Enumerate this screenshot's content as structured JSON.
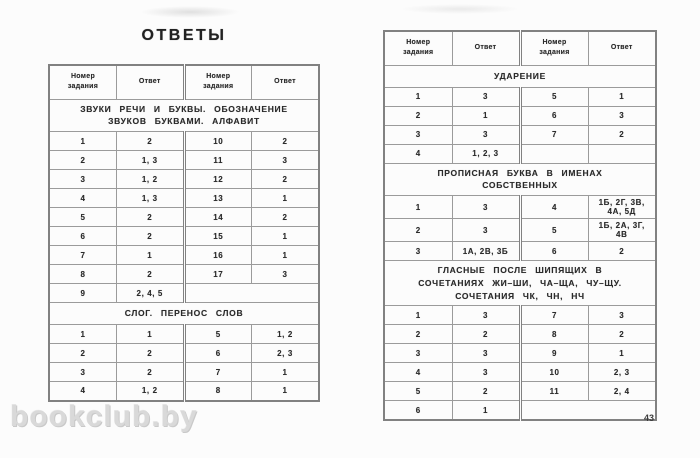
{
  "page": {
    "title": "ОТВЕТЫ",
    "watermark": "bookclub.by",
    "page_number": "43"
  },
  "colors": {
    "background": "#fcfcfc",
    "text": "#2b2b2b",
    "border": "#9b9b9b",
    "border_dark": "#818181",
    "watermark": "#d9d9d9"
  },
  "left_table": {
    "headers": [
      "Номер задания",
      "Ответ",
      "Номер задания",
      "Ответ"
    ],
    "sections": [
      {
        "title": "ЗВУКИ РЕЧИ И БУКВЫ. ОБОЗНАЧЕНИЕ ЗВУКОВ БУКВАМИ. АЛФАВИТ",
        "rows": [
          [
            "1",
            "2",
            "10",
            "2"
          ],
          [
            "2",
            "1, 3",
            "11",
            "3"
          ],
          [
            "3",
            "1, 2",
            "12",
            "2"
          ],
          [
            "4",
            "1, 3",
            "13",
            "1"
          ],
          [
            "5",
            "2",
            "14",
            "2"
          ],
          [
            "6",
            "2",
            "15",
            "1"
          ],
          [
            "7",
            "1",
            "16",
            "1"
          ],
          [
            "8",
            "2",
            "17",
            "3"
          ],
          [
            "9",
            "2, 4, 5",
            ""
          ]
        ]
      },
      {
        "title": "СЛОГ. ПЕРЕНОС СЛОВ",
        "rows": [
          [
            "1",
            "1",
            "5",
            "1, 2"
          ],
          [
            "2",
            "2",
            "6",
            "2, 3"
          ],
          [
            "3",
            "2",
            "7",
            "1"
          ],
          [
            "4",
            "1, 2",
            "8",
            "1"
          ]
        ]
      }
    ]
  },
  "right_table": {
    "headers": [
      "Номер задания",
      "Ответ",
      "Номер задания",
      "Ответ"
    ],
    "sections": [
      {
        "title": "УДАРЕНИЕ",
        "rows": [
          [
            "1",
            "3",
            "5",
            "1"
          ],
          [
            "2",
            "1",
            "6",
            "3"
          ],
          [
            "3",
            "3",
            "7",
            "2"
          ],
          [
            "4",
            "1, 2, 3",
            "",
            ""
          ]
        ]
      },
      {
        "title": "ПРОПИСНАЯ БУКВА В ИМЕНАХ СОБСТВЕННЫХ",
        "rows": [
          [
            "1",
            "3",
            "4",
            "1Б, 2Г, 3В, 4А, 5Д"
          ],
          [
            "2",
            "3",
            "5",
            "1Б, 2А, 3Г, 4В"
          ],
          [
            "3",
            "1А, 2В, 3Б",
            "6",
            "2"
          ]
        ]
      },
      {
        "title": "ГЛАСНЫЕ ПОСЛЕ ШИПЯЩИХ В СОЧЕТАНИЯХ ЖИ–ШИ, ЧА–ЩА, ЧУ–ЩУ. СОЧЕТАНИЯ ЧК, ЧН, НЧ",
        "rows": [
          [
            "1",
            "3",
            "7",
            "3"
          ],
          [
            "2",
            "2",
            "8",
            "2"
          ],
          [
            "3",
            "3",
            "9",
            "1"
          ],
          [
            "4",
            "3",
            "10",
            "2, 3"
          ],
          [
            "5",
            "2",
            "11",
            "2, 4"
          ],
          [
            "6",
            "1",
            ""
          ]
        ]
      }
    ]
  }
}
